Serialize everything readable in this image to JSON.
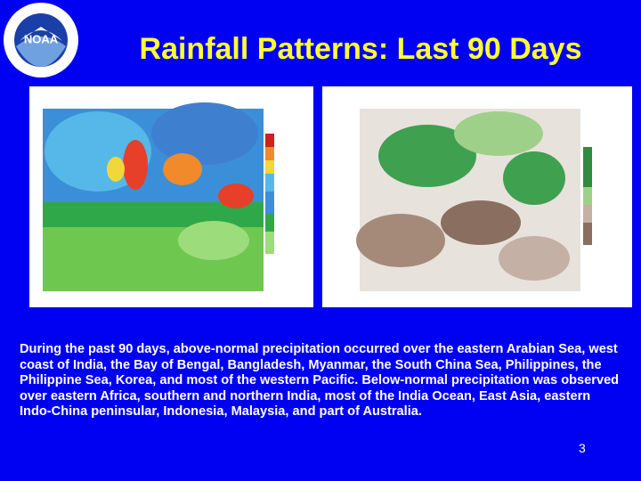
{
  "header": {
    "logo": "NOAA",
    "title": "Rainfall Patterns: Last 90 Days"
  },
  "body": {
    "text": "During the past 90 days, above-normal precipitation occurred over the eastern Arabian Sea, west coast of India, the Bay of Bengal, Bangladesh, Myanmar, the South China Sea, Philippines, the Philippine Sea, Korea, and most of the western Pacific. Below-normal precipitation was observed over eastern Africa, southern and northern India, most of the India Ocean, East Asia, eastern Indo-China peninsular, Indonesia, Malaysia, and part of Australia."
  },
  "footer": {
    "page_number": "3"
  }
}
